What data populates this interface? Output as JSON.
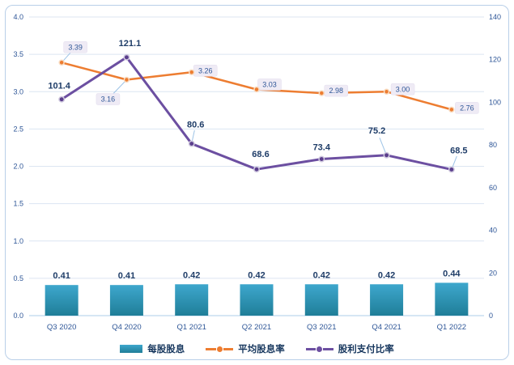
{
  "chart_data": {
    "type": "combo",
    "title": "",
    "categories": [
      "Q3 2020",
      "Q4 2020",
      "Q1 2021",
      "Q2 2021",
      "Q3 2021",
      "Q4 2021",
      "Q1 2022"
    ],
    "series": [
      {
        "name": "每股股息",
        "type": "bar",
        "axis": "left",
        "values": [
          0.41,
          0.41,
          0.42,
          0.42,
          0.42,
          0.42,
          0.44
        ],
        "labels": [
          "0.41",
          "0.41",
          "0.42",
          "0.42",
          "0.42",
          "0.42",
          "0.44"
        ],
        "color_top": "#3ea7cd",
        "color_bottom": "#1f7e98"
      },
      {
        "name": "平均股息率",
        "type": "line",
        "axis": "left",
        "values": [
          3.39,
          3.16,
          3.26,
          3.03,
          2.98,
          3.0,
          2.76
        ],
        "labels": [
          "3.39",
          "3.16",
          "3.26",
          "3.03",
          "2.98",
          "3.00",
          "2.76"
        ],
        "color": "#ed7d31"
      },
      {
        "name": "股利支付比率",
        "type": "line",
        "axis": "right",
        "values": [
          101.4,
          121.1,
          80.6,
          68.6,
          73.4,
          75.2,
          68.5
        ],
        "labels": [
          "101.4",
          "121.1",
          "80.6",
          "68.6",
          "73.4",
          "75.2",
          "68.5"
        ],
        "color": "#6c4fa1"
      }
    ],
    "left_axis": {
      "min": 0,
      "max": 4,
      "step": 0.5,
      "ticks": [
        "0.0",
        "0.5",
        "1.0",
        "1.5",
        "2.0",
        "2.5",
        "3.0",
        "3.5",
        "4.0"
      ]
    },
    "right_axis": {
      "min": 0,
      "max": 140,
      "step": 20,
      "ticks": [
        "0",
        "20",
        "40",
        "60",
        "80",
        "100",
        "120",
        "140"
      ]
    },
    "grid": true,
    "legend_position": "bottom"
  },
  "colors": {
    "grid": "#dce5f2",
    "axis_line": "#bdd7ee",
    "tick_text": "#2e5697",
    "data_label_text": "#1f3d68",
    "label_box_fill": "#efebf5",
    "label_box_border": "#e2dced",
    "leader": "#9dc3e6",
    "frame_border": "#b9cfe8",
    "orange_marker_ring": "#f8dcc2",
    "purple_marker_fill": "#5a3e8c",
    "purple_marker_ring": "#cfc8de"
  }
}
